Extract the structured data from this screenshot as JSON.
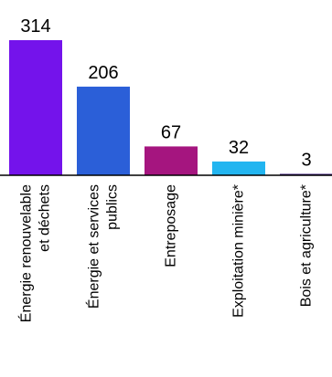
{
  "chart_data": {
    "type": "bar",
    "title": "",
    "xlabel": "",
    "ylabel": "",
    "categories": [
      "Énergie renouvelable et déchets",
      "Énergie et services publics",
      "Entreposage",
      "Exploitation minière*",
      "Bois et agriculture*"
    ],
    "category_lines": [
      [
        "Énergie renouvelable",
        "et déchets"
      ],
      [
        "Énergie et services",
        "publics"
      ],
      [
        "Entreposage"
      ],
      [
        "Exploitation minière*"
      ],
      [
        "Bois et agriculture*"
      ]
    ],
    "values": [
      314,
      206,
      67,
      32,
      3
    ],
    "value_labels": [
      "314",
      "206",
      "67",
      "32",
      "3"
    ],
    "colors": [
      "#7413eb",
      "#2b5fd8",
      "#a5157f",
      "#22b5f0",
      "#35127a"
    ],
    "ylim": [
      0,
      314
    ],
    "grid": false,
    "legend": "none",
    "axis_color": "#000000"
  }
}
